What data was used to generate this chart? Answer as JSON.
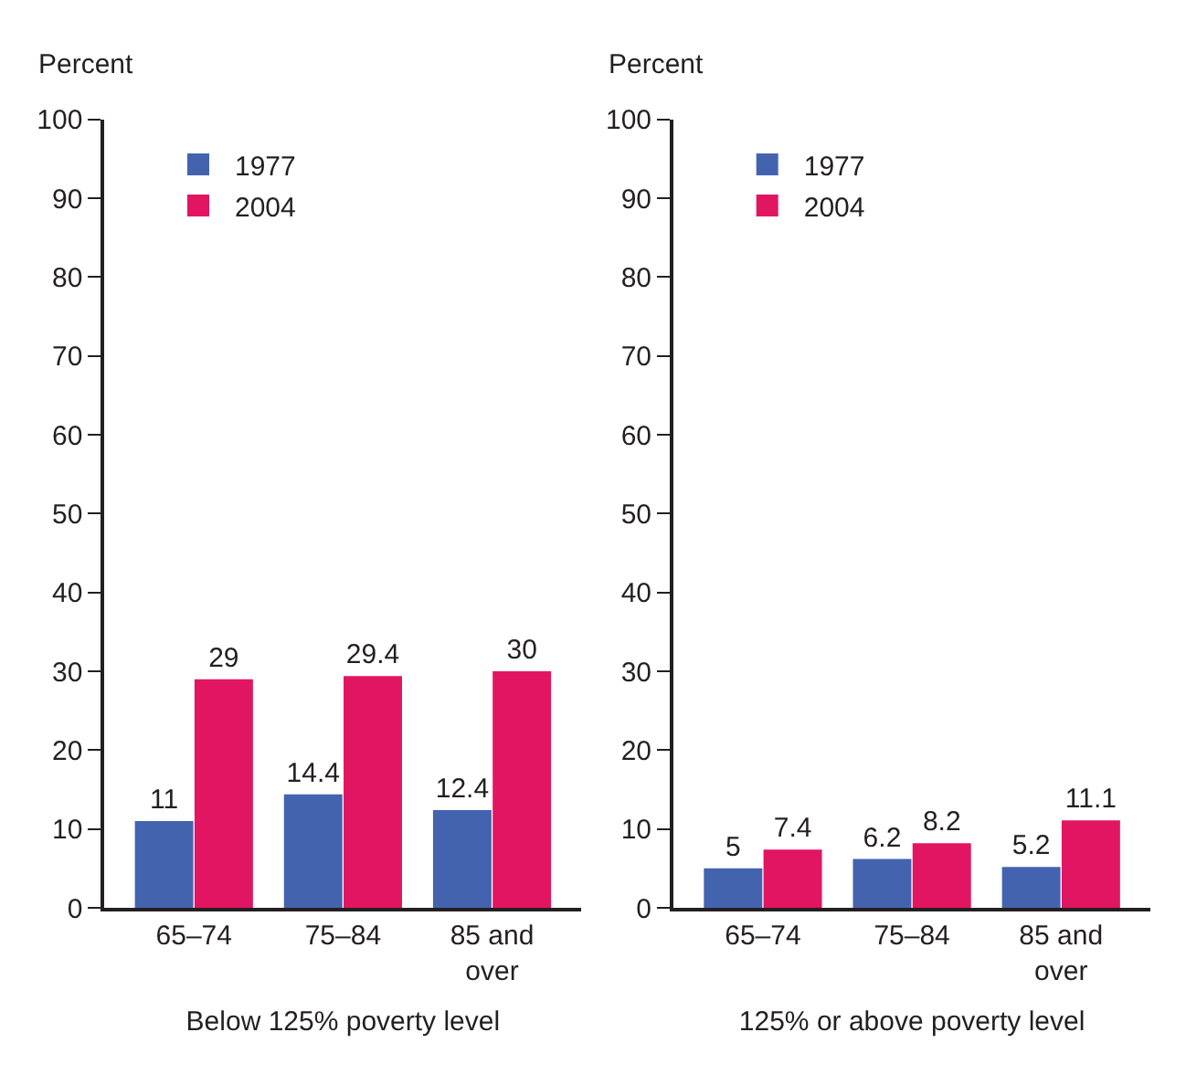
{
  "chart_data": [
    {
      "type": "bar",
      "xlabel": "Below 125% poverty level",
      "ylabel": "Percent",
      "categories": [
        "65–74",
        "75–84",
        "85 and over"
      ],
      "series": [
        {
          "name": "1977",
          "color": "#4463af",
          "values": [
            11,
            14.4,
            12.4
          ]
        },
        {
          "name": "2004",
          "color": "#e21562",
          "values": [
            29,
            29.4,
            30
          ]
        }
      ],
      "ylim": [
        0,
        100
      ],
      "yticks": [
        0,
        10,
        20,
        30,
        40,
        50,
        60,
        70,
        80,
        90,
        100
      ],
      "legend": "top left",
      "data_labels": true
    },
    {
      "type": "bar",
      "xlabel": "125% or above poverty level",
      "ylabel": "Percent",
      "categories": [
        "65–74",
        "75–84",
        "85 and over"
      ],
      "series": [
        {
          "name": "1977",
          "color": "#4463af",
          "values": [
            5,
            6.2,
            5.2
          ]
        },
        {
          "name": "2004",
          "color": "#e21562",
          "values": [
            7.4,
            8.2,
            11.1
          ]
        }
      ],
      "ylim": [
        0,
        100
      ],
      "yticks": [
        0,
        10,
        20,
        30,
        40,
        50,
        60,
        70,
        80,
        90,
        100
      ],
      "legend": "top left",
      "data_labels": true
    }
  ]
}
